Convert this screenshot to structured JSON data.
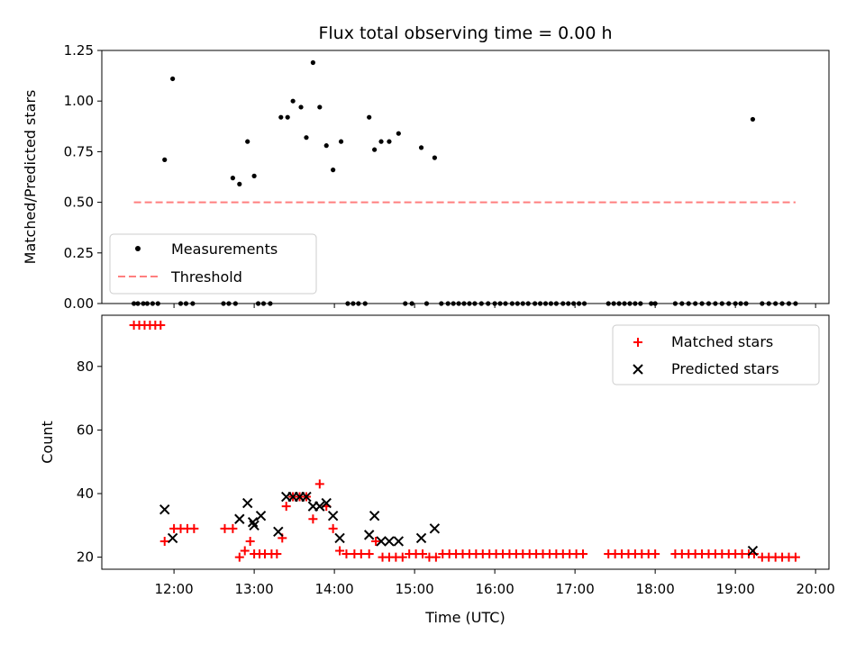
{
  "chart_data": [
    {
      "type": "scatter",
      "title": "Flux total observing time = 0.00 h",
      "xlabel": "",
      "ylabel": "Matched/Predicted stars",
      "ylim": [
        0,
        1.25
      ],
      "yticks": [
        "0.00",
        "0.25",
        "0.50",
        "0.75",
        "1.00",
        "1.25"
      ],
      "threshold": {
        "name": "Threshold",
        "value": 0.5,
        "x_from": "11:30",
        "x_to": "19:45",
        "color": "#ff7f7f"
      },
      "legend": {
        "placement": "lower-left",
        "entries": [
          "Measurements",
          "Threshold"
        ]
      },
      "series": [
        {
          "name": "Measurements",
          "color": "#000000",
          "marker": "dot",
          "x": [
            "11:53",
            "11:59",
            "12:44",
            "12:49",
            "12:55",
            "13:00",
            "13:20",
            "13:25",
            "13:29",
            "13:35",
            "13:39",
            "13:44",
            "13:49",
            "13:54",
            "13:59",
            "14:05",
            "14:26",
            "14:30",
            "14:35",
            "14:41",
            "14:48",
            "15:05",
            "15:15",
            "19:13"
          ],
          "y": [
            0.71,
            1.11,
            0.62,
            0.59,
            0.8,
            0.63,
            0.92,
            0.92,
            1.0,
            0.97,
            0.82,
            1.19,
            0.97,
            0.78,
            0.66,
            0.8,
            0.92,
            0.76,
            0.8,
            0.8,
            0.84,
            0.77,
            0.72,
            0.91
          ],
          "zero_x": [
            "11:30",
            "11:33",
            "11:37",
            "11:40",
            "11:44",
            "11:48",
            "12:05",
            "12:09",
            "12:14",
            "12:37",
            "12:41",
            "12:46",
            "13:03",
            "13:07",
            "13:12",
            "14:10",
            "14:14",
            "14:18",
            "14:23",
            "14:53",
            "14:58",
            "15:09",
            "15:20",
            "15:25",
            "15:29",
            "15:33",
            "15:37",
            "15:41",
            "15:45",
            "15:50",
            "15:55",
            "16:00",
            "16:04",
            "16:08",
            "16:13",
            "16:17",
            "16:21",
            "16:25",
            "16:30",
            "16:34",
            "16:38",
            "16:42",
            "16:46",
            "16:51",
            "16:55",
            "16:59",
            "17:03",
            "17:07",
            "17:25",
            "17:29",
            "17:33",
            "17:37",
            "17:41",
            "17:45",
            "17:49",
            "17:57",
            "18:00",
            "18:15",
            "18:20",
            "18:25",
            "18:30",
            "18:35",
            "18:40",
            "18:45",
            "18:50",
            "18:55",
            "19:00",
            "19:04",
            "19:08",
            "19:20",
            "19:25",
            "19:30",
            "19:35",
            "19:40",
            "19:45"
          ]
        }
      ]
    },
    {
      "type": "scatter",
      "title": "",
      "xlabel": "Time (UTC)",
      "ylabel": "Count",
      "ylim": [
        16.2,
        96.1
      ],
      "yticks": [
        "20",
        "40",
        "60",
        "80"
      ],
      "xticks": [
        "12:00",
        "13:00",
        "14:00",
        "15:00",
        "16:00",
        "17:00",
        "18:00",
        "19:00",
        "20:00"
      ],
      "xlim": [
        "11:06",
        "20:10"
      ],
      "legend": {
        "placement": "top-right",
        "entries": [
          "Matched stars",
          "Predicted stars"
        ]
      },
      "series": [
        {
          "name": "Matched stars",
          "color": "#ff0000",
          "marker": "plus",
          "x": [
            "11:30",
            "11:34",
            "11:38",
            "11:42",
            "11:46",
            "11:50",
            "11:53",
            "12:00",
            "12:05",
            "12:10",
            "12:15",
            "12:38",
            "12:44",
            "12:49",
            "12:53",
            "12:57",
            "13:00",
            "13:04",
            "13:08",
            "13:13",
            "13:17",
            "13:21",
            "13:24",
            "13:29",
            "13:34",
            "13:39",
            "13:44",
            "13:49",
            "13:54",
            "13:59",
            "14:04",
            "14:09",
            "14:15",
            "14:20",
            "14:26",
            "14:31",
            "14:36",
            "14:41",
            "14:46",
            "14:51",
            "14:56",
            "15:01",
            "15:06",
            "15:11",
            "15:16",
            "15:21",
            "15:26",
            "15:31",
            "15:36",
            "15:41",
            "15:46",
            "15:51",
            "15:56",
            "16:01",
            "16:06",
            "16:11",
            "16:16",
            "16:21",
            "16:26",
            "16:31",
            "16:36",
            "16:41",
            "16:46",
            "16:51",
            "16:56",
            "17:01",
            "17:06",
            "17:25",
            "17:30",
            "17:35",
            "17:40",
            "17:45",
            "17:50",
            "17:55",
            "18:00",
            "18:15",
            "18:20",
            "18:25",
            "18:30",
            "18:35",
            "18:40",
            "18:45",
            "18:50",
            "18:55",
            "19:00",
            "19:05",
            "19:10",
            "19:14",
            "19:20",
            "19:25",
            "19:30",
            "19:35",
            "19:40",
            "19:45"
          ],
          "y": [
            93,
            93,
            93,
            93,
            93,
            93,
            25,
            29,
            29,
            29,
            29,
            29,
            29,
            20,
            22,
            25,
            21,
            21,
            21,
            21,
            21,
            26,
            36,
            39,
            39,
            39,
            32,
            43,
            36,
            29,
            22,
            21,
            21,
            21,
            21,
            25,
            20,
            20,
            20,
            20,
            21,
            21,
            21,
            20,
            20,
            21,
            21,
            21,
            21,
            21,
            21,
            21,
            21,
            21,
            21,
            21,
            21,
            21,
            21,
            21,
            21,
            21,
            21,
            21,
            21,
            21,
            21,
            21,
            21,
            21,
            21,
            21,
            21,
            21,
            21,
            21,
            21,
            21,
            21,
            21,
            21,
            21,
            21,
            21,
            21,
            21,
            21,
            21,
            20,
            20,
            20,
            20,
            20,
            20
          ]
        },
        {
          "name": "Predicted stars",
          "color": "#000000",
          "marker": "x",
          "x": [
            "11:53",
            "11:59",
            "12:49",
            "12:55",
            "12:59",
            "13:00",
            "13:05",
            "13:18",
            "13:24",
            "13:29",
            "13:34",
            "13:39",
            "13:44",
            "13:49",
            "13:54",
            "13:59",
            "14:04",
            "14:26",
            "14:30",
            "14:35",
            "14:41",
            "14:48",
            "15:05",
            "15:15",
            "19:13"
          ],
          "y": [
            35,
            26,
            32,
            37,
            31,
            30,
            33,
            28,
            39,
            39,
            39,
            39,
            36,
            36,
            37,
            33,
            26,
            27,
            33,
            25,
            25,
            25,
            26,
            29,
            22
          ]
        }
      ]
    }
  ]
}
